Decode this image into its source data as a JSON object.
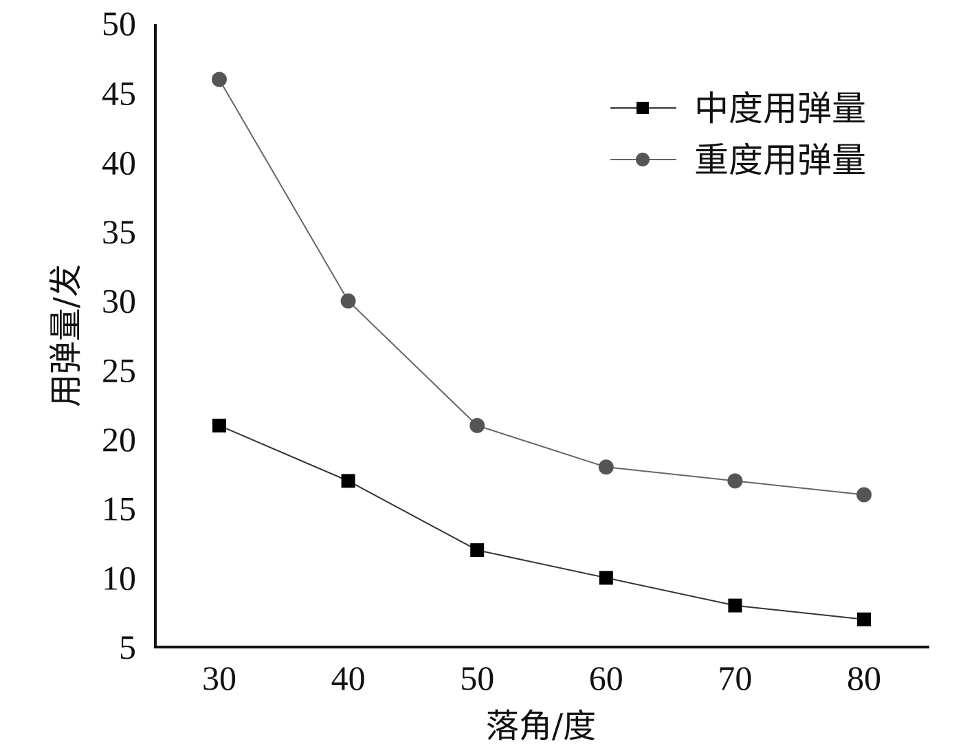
{
  "chart_data": {
    "type": "line",
    "title": "",
    "xlabel": "落角/度",
    "ylabel": "用弹量/发",
    "x": [
      30,
      40,
      50,
      60,
      70,
      80
    ],
    "x_tick_labels": [
      "30",
      "40",
      "50",
      "60",
      "70",
      "80"
    ],
    "y_tick_labels": [
      "5",
      "10",
      "15",
      "20",
      "25",
      "30",
      "35",
      "40",
      "45",
      "50"
    ],
    "ylim": [
      5,
      50
    ],
    "grid": false,
    "legend_position": "top-right",
    "series": [
      {
        "name": "中度用弹量",
        "values": [
          21,
          17,
          12,
          10,
          8,
          7
        ],
        "marker": "square",
        "color": "#000000",
        "line_color": "#333333"
      },
      {
        "name": "重度用弹量",
        "values": [
          46,
          30,
          21,
          18,
          17,
          16
        ],
        "marker": "circle",
        "color": "#555555",
        "line_color": "#666666"
      }
    ]
  }
}
